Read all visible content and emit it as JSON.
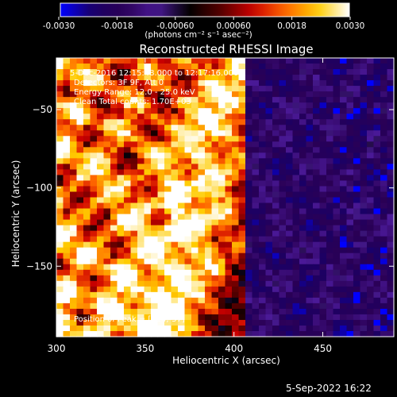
{
  "colorbar": {
    "tick_labels": [
      "-0.0030",
      "-0.0018",
      "-0.00060",
      "0.00060",
      "0.0018",
      "0.0030"
    ],
    "ticks": [
      -0.003,
      -0.0018,
      -0.0006,
      0.0006,
      0.0018,
      0.003
    ],
    "range": [
      -0.003,
      0.003
    ],
    "unit_label": "(photons cm⁻² s⁻¹ asec⁻²)"
  },
  "footer": {
    "timestamp": "5-Sep-2022 16:22"
  },
  "chart_data": {
    "type": "heatmap",
    "title": "Reconstructed RHESSI Image",
    "xlabel": "Heliocentric X (arcsec)",
    "ylabel": "Heliocentric Y (arcsec)",
    "xlim": [
      300,
      490
    ],
    "ylim": [
      -195,
      -17
    ],
    "x_ticks": [
      300,
      350,
      400,
      450
    ],
    "x_tick_labels": [
      "300",
      "350",
      "400",
      "450"
    ],
    "y_ticks": [
      -50,
      -100,
      -150
    ],
    "y_tick_labels": [
      "−50",
      "−100",
      "−150"
    ],
    "annotations": [
      "5-Dec-2016 12:15:48.000 to 12:17:16.000",
      "Detectors: 3F 9F, Att 0",
      "Energy Range: 12.0 - 25.0 keV",
      "Clean    Total counts: 1.70E+03"
    ],
    "peak_label": "Position of Peak = [314,-57]",
    "peak": [
      314,
      -57
    ],
    "grid": false,
    "colormap": [
      "#0000ff",
      "#1a0066",
      "#2a0055",
      "#4b1a99",
      "#000000",
      "#550000",
      "#cc0000",
      "#ff6600",
      "#ffcc00",
      "#ffffff"
    ]
  }
}
